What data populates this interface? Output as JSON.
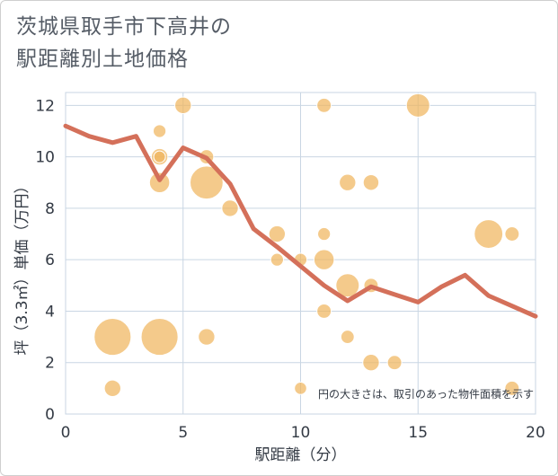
{
  "title_line1": "茨城県取手市下高井の",
  "title_line2": "駅距離別土地価格",
  "chart_data": {
    "type": "scatter",
    "title": "茨城県取手市下高井の駅距離別土地価格",
    "xlabel": "駅距離（分）",
    "ylabel": "坪（3.3㎡）単価（万円）",
    "xlim": [
      0,
      20
    ],
    "ylim": [
      0,
      12.5
    ],
    "x_ticks": [
      0,
      5,
      10,
      15,
      20
    ],
    "y_ticks": [
      0,
      2,
      4,
      6,
      8,
      10,
      12
    ],
    "note": "円の大きさは、取引のあった物件面積を示す",
    "colors": {
      "bubble": "#f0b55e",
      "line": "#d4705a",
      "grid": "#c9d6e3"
    },
    "bubbles": [
      {
        "x": 2,
        "y": 3,
        "size": 10
      },
      {
        "x": 2,
        "y": 1,
        "size": 2
      },
      {
        "x": 4,
        "y": 3,
        "size": 10
      },
      {
        "x": 4,
        "y": 9,
        "size": 3
      },
      {
        "x": 4,
        "y": 10,
        "size": 2
      },
      {
        "x": 4,
        "y": 11,
        "size": 1.2
      },
      {
        "x": 4,
        "y": 10,
        "size": 1
      },
      {
        "x": 5,
        "y": 12,
        "size": 2
      },
      {
        "x": 6,
        "y": 9,
        "size": 8
      },
      {
        "x": 6,
        "y": 10,
        "size": 1.5
      },
      {
        "x": 6,
        "y": 3,
        "size": 2
      },
      {
        "x": 7,
        "y": 8,
        "size": 2
      },
      {
        "x": 9,
        "y": 7,
        "size": 2
      },
      {
        "x": 9,
        "y": 6,
        "size": 1.2
      },
      {
        "x": 10,
        "y": 6,
        "size": 1.2
      },
      {
        "x": 10,
        "y": 1,
        "size": 1.1
      },
      {
        "x": 11,
        "y": 12,
        "size": 1.5
      },
      {
        "x": 11,
        "y": 7,
        "size": 1.2
      },
      {
        "x": 11,
        "y": 6,
        "size": 3
      },
      {
        "x": 11,
        "y": 4,
        "size": 1.5
      },
      {
        "x": 12,
        "y": 9,
        "size": 2
      },
      {
        "x": 12,
        "y": 5,
        "size": 4
      },
      {
        "x": 12,
        "y": 3,
        "size": 1.3
      },
      {
        "x": 13,
        "y": 9,
        "size": 1.8
      },
      {
        "x": 13,
        "y": 5,
        "size": 1.5
      },
      {
        "x": 13,
        "y": 2,
        "size": 2
      },
      {
        "x": 14,
        "y": 2,
        "size": 1.5
      },
      {
        "x": 15,
        "y": 12,
        "size": 4
      },
      {
        "x": 18,
        "y": 7,
        "size": 6
      },
      {
        "x": 19,
        "y": 7,
        "size": 1.5
      },
      {
        "x": 19,
        "y": 1,
        "size": 1.5
      }
    ],
    "line": {
      "x": [
        0,
        1,
        2,
        3,
        4,
        5,
        6,
        7,
        8,
        9,
        10,
        11,
        12,
        13,
        14,
        15,
        16,
        17,
        18,
        19,
        20
      ],
      "y": [
        11.2,
        10.8,
        10.55,
        10.8,
        9.1,
        10.35,
        9.95,
        8.95,
        7.2,
        6.5,
        5.75,
        5.0,
        4.4,
        4.95,
        4.65,
        4.35,
        4.95,
        5.4,
        4.6,
        4.2,
        3.8
      ]
    }
  }
}
